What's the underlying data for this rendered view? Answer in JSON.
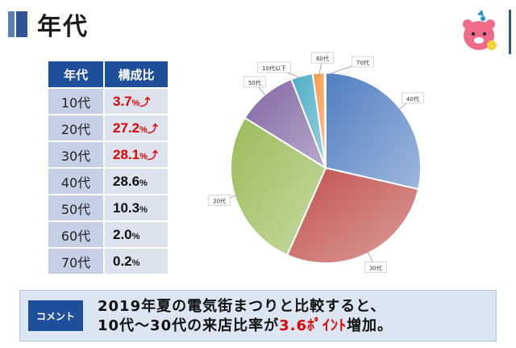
{
  "header": {
    "title": "年代"
  },
  "table": {
    "headers": [
      "年代",
      "構成比"
    ],
    "rows": [
      {
        "age": "10代",
        "value": "3.7",
        "unit": "%",
        "highlight": true,
        "up": "⤴"
      },
      {
        "age": "20代",
        "value": "27.2",
        "unit": "%",
        "highlight": true,
        "up": "⤴"
      },
      {
        "age": "30代",
        "value": "28.1",
        "unit": "%",
        "highlight": true,
        "up": "⤴"
      },
      {
        "age": "40代",
        "value": "28.6",
        "unit": "%",
        "highlight": false,
        "up": ""
      },
      {
        "age": "50代",
        "value": "10.3",
        "unit": "%",
        "highlight": false,
        "up": ""
      },
      {
        "age": "60代",
        "value": "2.0",
        "unit": "%",
        "highlight": false,
        "up": ""
      },
      {
        "age": "70代",
        "value": "0.2",
        "unit": "%",
        "highlight": false,
        "up": ""
      }
    ]
  },
  "chart_data": {
    "type": "pie",
    "categories": [
      "40代",
      "30代",
      "20代",
      "50代",
      "10代以下",
      "60代",
      "70代"
    ],
    "values": [
      28.6,
      28.1,
      27.2,
      10.3,
      3.7,
      2.0,
      0.2
    ],
    "colors": [
      "#4f7ec1",
      "#c0504d",
      "#9bbb59",
      "#8064a2",
      "#4bacc6",
      "#f79646",
      "#a6a6a6"
    ]
  },
  "comment": {
    "label": "コメント",
    "line1": "2019年夏の電気街まつりと比較すると、",
    "line2_pre": "10代～30代の来店比率が",
    "line2_hl": "3.6ﾎﾟｲﾝﾄ",
    "line2_post": "増加。"
  }
}
